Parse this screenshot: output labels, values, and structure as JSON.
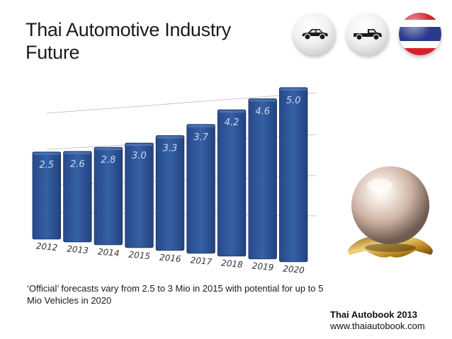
{
  "title": [
    "Thai Automotive Industry",
    "Future"
  ],
  "icons": [
    "sedan-car-icon",
    "pickup-truck-icon",
    "thailand-flag-icon"
  ],
  "flag_colors": [
    "#d61f2a",
    "#ffffff",
    "#2b3a8c",
    "#ffffff",
    "#d61f2a"
  ],
  "chart_data": {
    "type": "bar",
    "categories": [
      "2012",
      "2013",
      "2014",
      "2015",
      "2016",
      "2017",
      "2018",
      "2019",
      "2020"
    ],
    "values": [
      2.5,
      2.6,
      2.8,
      3.0,
      3.3,
      3.7,
      4.2,
      4.6,
      5.0
    ],
    "value_labels": [
      "2.5",
      "2.6",
      "2.8",
      "3.0",
      "3.3",
      "3.7",
      "4.2",
      "4.6",
      "5.0"
    ],
    "ylim": [
      0,
      5.0
    ],
    "grid": true,
    "bar_color": "#2f5597",
    "label_color": "#c9d8ee"
  },
  "caption": "‘Official’ forecasts vary from 2.5 to 3 Mio in 2015 with potential for up to 5 Mio Vehicles in 2020",
  "credit": {
    "name": "Thai Autobook 2013",
    "url": "www.thaiautobook.com"
  }
}
